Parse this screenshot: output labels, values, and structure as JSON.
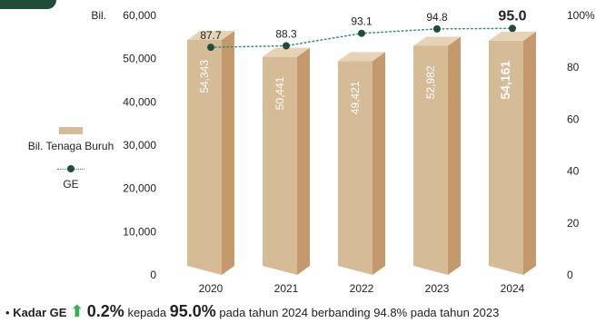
{
  "chart_data": {
    "type": "bar+line",
    "categories": [
      "2020",
      "2021",
      "2022",
      "2023",
      "2024"
    ],
    "series": [
      {
        "name": "Bil. Tenaga Buruh",
        "type": "bar",
        "axis": "left",
        "values": [
          54343,
          50441,
          49421,
          52982,
          54161
        ],
        "labels": [
          "54,343",
          "50,441",
          "49,421",
          "52,982",
          "54,161"
        ]
      },
      {
        "name": "GE",
        "type": "line",
        "axis": "right",
        "values": [
          87.7,
          88.3,
          93.1,
          94.8,
          95.0
        ],
        "labels": [
          "87.7",
          "88.3",
          "93.1",
          "94.8",
          "95.0"
        ]
      }
    ],
    "left_axis": {
      "prefix_label": "Bil.",
      "ylim": [
        0,
        60000
      ],
      "ticks": [
        "0",
        "10,000",
        "20,000",
        "30,000",
        "40,000",
        "50,000",
        "60,000"
      ]
    },
    "right_axis": {
      "ylim": [
        0,
        100
      ],
      "ticks": [
        "0",
        "20",
        "40",
        "60",
        "80",
        "100%"
      ]
    },
    "legend": {
      "position": "left",
      "bar_label": "Bil. Tenaga Buruh",
      "line_label": "GE"
    },
    "colors": {
      "bar_front": "#d6bc96",
      "bar_side": "#c49a6c",
      "bar_top": "#e6d2b5",
      "line": "#2e8c82",
      "marker": "#1f4d3a",
      "accent_band": "#1f4d3a",
      "arrow": "#2fb34a"
    }
  },
  "footnote": {
    "bullet": "•",
    "prefix": "Kadar GE",
    "arrow": "⬆",
    "change": "0.2%",
    "mid": "kepada",
    "value": "95.0%",
    "rest": "pada tahun 2024 berbanding 94.8% pada tahun 2023"
  }
}
